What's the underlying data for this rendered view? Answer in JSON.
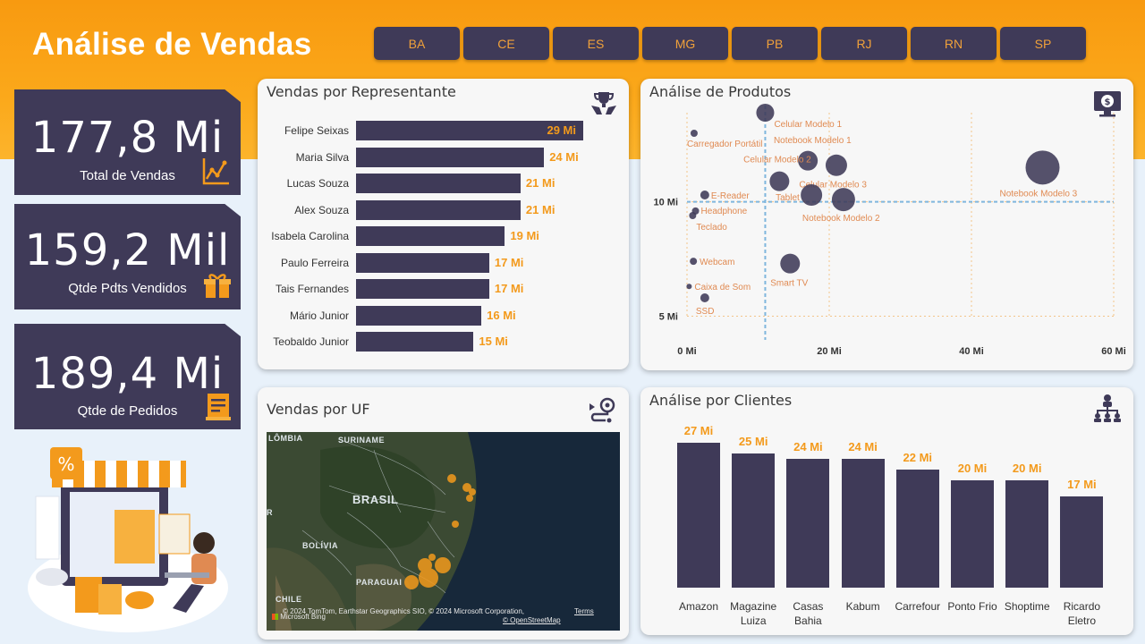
{
  "header": {
    "title": "Análise de Vendas",
    "uf_filters": [
      "BA",
      "CE",
      "ES",
      "MG",
      "PB",
      "RJ",
      "RN",
      "SP"
    ]
  },
  "kpis": [
    {
      "value": "177,8 Mi",
      "label": "Total de Vendas",
      "icon": "chart-line-icon"
    },
    {
      "value": "159,2 Mil",
      "label": "Qtde Pdts Vendidos",
      "icon": "gift-icon"
    },
    {
      "value": "189,4 Mi",
      "label": "Qtde de Pedidos",
      "icon": "receipt-icon"
    }
  ],
  "sales_by_rep": {
    "title": "Vendas por Representante",
    "icon": "trophy-hands-icon",
    "chart_data": {
      "type": "bar",
      "orientation": "horizontal",
      "categories": [
        "Felipe Seixas",
        "Maria Silva",
        "Lucas Souza",
        "Alex Souza",
        "Isabela Carolina",
        "Paulo Ferreira",
        "Tais Fernandes",
        "Mário Junior",
        "Teobaldo Junior"
      ],
      "values": [
        29,
        24,
        21,
        21,
        19,
        17,
        17,
        16,
        15
      ],
      "labels": [
        "29 Mi",
        "24 Mi",
        "21 Mi",
        "21 Mi",
        "19 Mi",
        "17 Mi",
        "17 Mi",
        "16 Mi",
        "15 Mi"
      ],
      "unit": "Mi"
    }
  },
  "product_analysis": {
    "title": "Análise de Produtos",
    "icon": "monitor-money-icon",
    "chart_data": {
      "type": "scatter",
      "x_ticks": [
        "0 Mi",
        "20 Mi",
        "40 Mi",
        "60 Mi"
      ],
      "y_ticks": [
        "5 Mi",
        "10 Mi"
      ],
      "xlim": [
        0,
        60
      ],
      "ylim": [
        4.9,
        13.9
      ],
      "points": [
        {
          "name": "Celular Modelo 1",
          "x": 11,
          "y": 13.9,
          "size": 10
        },
        {
          "name": "Carregador Portátil",
          "x": 1,
          "y": 13,
          "size": 4
        },
        {
          "name": "Notebook Modelo 1",
          "x": 21,
          "y": 11.6,
          "size": 12
        },
        {
          "name": "Celular Modelo 2",
          "x": 17,
          "y": 11.8,
          "size": 11
        },
        {
          "name": "Celular Modelo 3",
          "x": 13,
          "y": 10.9,
          "size": 11
        },
        {
          "name": "Notebook Modelo 3",
          "x": 50,
          "y": 11.5,
          "size": 19
        },
        {
          "name": "Tablet",
          "x": 17.5,
          "y": 10.3,
          "size": 12
        },
        {
          "name": "Notebook Modelo 2",
          "x": 22,
          "y": 10.1,
          "size": 13
        },
        {
          "name": "E-Reader",
          "x": 2.5,
          "y": 10.3,
          "size": 5
        },
        {
          "name": "Headphone",
          "x": 1.2,
          "y": 9.6,
          "size": 4
        },
        {
          "name": "Teclado",
          "x": 0.8,
          "y": 9.4,
          "size": 4
        },
        {
          "name": "Webcam",
          "x": 0.9,
          "y": 7.4,
          "size": 4
        },
        {
          "name": "Smart TV",
          "x": 14.5,
          "y": 7.3,
          "size": 11
        },
        {
          "name": "Caixa de Som",
          "x": 0.3,
          "y": 6.3,
          "size": 3
        },
        {
          "name": "SSD",
          "x": 2.5,
          "y": 5.8,
          "size": 5
        }
      ],
      "reference_lines": {
        "x": 11,
        "y": 10
      }
    }
  },
  "sales_by_uf": {
    "title": "Vendas por UF",
    "icon": "route-pin-icon",
    "map_labels": [
      "LÔMBIA",
      "SURINAME",
      "BRASIL",
      "BOLÍVIA",
      "PARAGUAI",
      "CHILE",
      "R"
    ],
    "attribution": "© 2024 TomTom, Earthstar Geographics SIO, © 2024 Microsoft Corporation,",
    "attribution_link": "Terms",
    "attribution_osm": "© OpenStreetMap",
    "bing_logo": "Microsoft Bing"
  },
  "client_analysis": {
    "title": "Análise por Clientes",
    "icon": "org-chart-icon",
    "chart_data": {
      "type": "bar",
      "categories": [
        "Amazon",
        "Magazine Luiza",
        "Casas Bahia",
        "Kabum",
        "Carrefour",
        "Ponto Frio",
        "Shoptime",
        "Ricardo Eletro"
      ],
      "category_lines": [
        [
          "Amazon"
        ],
        [
          "Magazine",
          "Luiza"
        ],
        [
          "Casas",
          "Bahia"
        ],
        [
          "Kabum"
        ],
        [
          "Carrefour"
        ],
        [
          "Ponto Frio"
        ],
        [
          "Shoptime"
        ],
        [
          "Ricardo",
          "Eletro"
        ]
      ],
      "values": [
        27,
        25,
        24,
        24,
        22,
        20,
        20,
        17
      ],
      "labels": [
        "27 Mi",
        "25 Mi",
        "24 Mi",
        "24 Mi",
        "22 Mi",
        "20 Mi",
        "20 Mi",
        "17 Mi"
      ],
      "unit": "Mi"
    }
  },
  "colors": {
    "accent": "#f39a1c",
    "dark": "#3f3a58",
    "orange_band": "#f89a10"
  }
}
